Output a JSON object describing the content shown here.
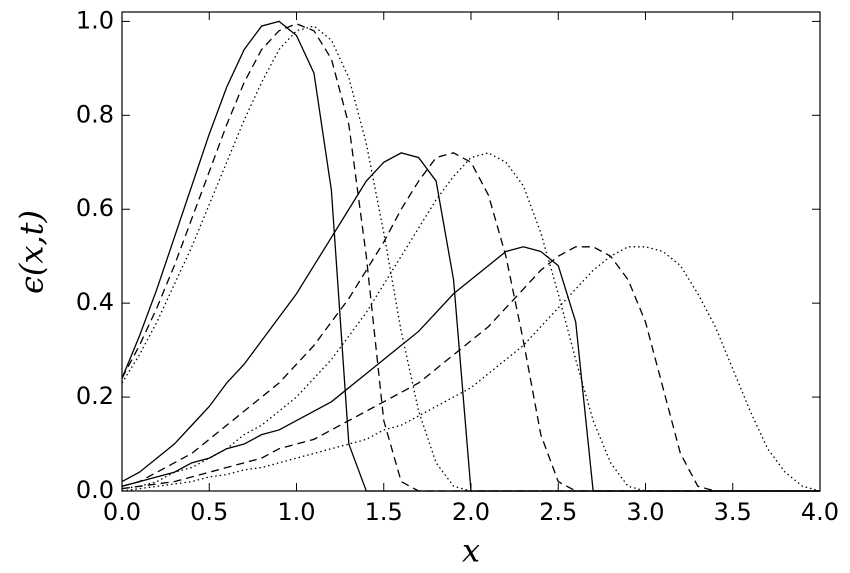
{
  "chart_data": {
    "type": "line",
    "x_label": "x",
    "y_label": "ϵ(x,t)",
    "xlim": [
      0,
      4
    ],
    "ylim": [
      0,
      1.02
    ],
    "xticks": [
      {
        "value": 0,
        "label": "0.0"
      },
      {
        "value": 0.5,
        "label": "0.5"
      },
      {
        "value": 1,
        "label": "1.0"
      },
      {
        "value": 1.5,
        "label": "1.5"
      },
      {
        "value": 2,
        "label": "2.0"
      },
      {
        "value": 2.5,
        "label": "2.5"
      },
      {
        "value": 3,
        "label": "3.0"
      },
      {
        "value": 3.5,
        "label": "3.5"
      },
      {
        "value": 4,
        "label": "4.0"
      }
    ],
    "yticks": [
      {
        "value": 0,
        "label": "0.0"
      },
      {
        "value": 0.2,
        "label": "0.2"
      },
      {
        "value": 0.4,
        "label": "0.4"
      },
      {
        "value": 0.6,
        "label": "0.6"
      },
      {
        "value": 0.8,
        "label": "0.8"
      },
      {
        "value": 1,
        "label": "1.0"
      }
    ],
    "grid": false,
    "x": [
      0,
      0.1,
      0.2,
      0.3,
      0.4,
      0.5,
      0.6,
      0.7,
      0.8,
      0.9,
      1.0,
      1.1,
      1.2,
      1.3,
      1.4,
      1.5,
      1.6,
      1.7,
      1.8,
      1.9,
      2.0,
      2.1,
      2.2,
      2.3,
      2.4,
      2.5,
      2.6,
      2.7,
      2.8,
      2.9,
      3.0,
      3.1,
      3.2,
      3.3,
      3.4,
      3.5,
      3.6,
      3.7,
      3.8,
      3.9,
      4.0
    ],
    "series": [
      {
        "color": "#000000",
        "dash": "solid",
        "values": [
          0.24,
          0.33,
          0.43,
          0.54,
          0.65,
          0.76,
          0.86,
          0.94,
          0.99,
          1.0,
          0.97,
          0.89,
          0.64,
          0.1,
          0,
          0,
          0,
          0,
          0,
          0,
          0,
          0,
          0,
          0,
          0,
          0,
          0,
          0,
          0,
          0,
          0,
          0,
          0,
          0,
          0,
          0,
          0,
          0,
          0,
          0,
          0
        ]
      },
      {
        "color": "#000000",
        "dash": "dashed",
        "values": [
          0.24,
          0.31,
          0.39,
          0.48,
          0.58,
          0.68,
          0.78,
          0.87,
          0.94,
          0.98,
          0.995,
          0.98,
          0.92,
          0.78,
          0.5,
          0.15,
          0.02,
          0,
          0,
          0,
          0,
          0,
          0,
          0,
          0,
          0,
          0,
          0,
          0,
          0,
          0,
          0,
          0,
          0,
          0,
          0,
          0,
          0,
          0,
          0,
          0
        ]
      },
      {
        "color": "#000000",
        "dash": "dotted",
        "values": [
          0.23,
          0.29,
          0.36,
          0.44,
          0.52,
          0.61,
          0.7,
          0.79,
          0.87,
          0.94,
          0.98,
          0.99,
          0.96,
          0.88,
          0.74,
          0.55,
          0.34,
          0.17,
          0.06,
          0.01,
          0,
          0,
          0,
          0,
          0,
          0,
          0,
          0,
          0,
          0,
          0,
          0,
          0,
          0,
          0,
          0,
          0,
          0,
          0,
          0,
          0
        ]
      },
      {
        "color": "#000000",
        "dash": "solid",
        "values": [
          0.02,
          0.04,
          0.07,
          0.1,
          0.14,
          0.18,
          0.23,
          0.27,
          0.32,
          0.37,
          0.42,
          0.48,
          0.54,
          0.6,
          0.66,
          0.7,
          0.72,
          0.71,
          0.66,
          0.45,
          0,
          0,
          0,
          0,
          0,
          0,
          0,
          0,
          0,
          0,
          0,
          0,
          0,
          0,
          0,
          0,
          0,
          0,
          0,
          0,
          0
        ]
      },
      {
        "color": "#000000",
        "dash": "dashed",
        "values": [
          0.01,
          0.02,
          0.04,
          0.06,
          0.08,
          0.11,
          0.14,
          0.17,
          0.2,
          0.23,
          0.27,
          0.31,
          0.36,
          0.41,
          0.47,
          0.53,
          0.6,
          0.66,
          0.71,
          0.72,
          0.7,
          0.63,
          0.5,
          0.32,
          0.12,
          0.02,
          0,
          0,
          0,
          0,
          0,
          0,
          0,
          0,
          0,
          0,
          0,
          0,
          0,
          0,
          0
        ]
      },
      {
        "color": "#000000",
        "dash": "dotted",
        "values": [
          0.005,
          0.01,
          0.02,
          0.04,
          0.05,
          0.07,
          0.09,
          0.12,
          0.14,
          0.17,
          0.2,
          0.24,
          0.28,
          0.33,
          0.38,
          0.44,
          0.5,
          0.56,
          0.62,
          0.67,
          0.71,
          0.72,
          0.7,
          0.65,
          0.55,
          0.42,
          0.28,
          0.15,
          0.06,
          0.01,
          0,
          0,
          0,
          0,
          0,
          0,
          0,
          0,
          0,
          0,
          0
        ]
      },
      {
        "color": "#000000",
        "dash": "solid",
        "values": [
          0.01,
          0.02,
          0.03,
          0.04,
          0.06,
          0.07,
          0.09,
          0.1,
          0.12,
          0.13,
          0.15,
          0.17,
          0.19,
          0.22,
          0.25,
          0.28,
          0.31,
          0.34,
          0.38,
          0.42,
          0.45,
          0.48,
          0.51,
          0.52,
          0.51,
          0.48,
          0.36,
          0,
          0,
          0,
          0,
          0,
          0,
          0,
          0,
          0,
          0,
          0,
          0,
          0,
          0
        ]
      },
      {
        "color": "#000000",
        "dash": "dashed",
        "values": [
          0.005,
          0.01,
          0.015,
          0.02,
          0.03,
          0.04,
          0.05,
          0.06,
          0.07,
          0.09,
          0.1,
          0.11,
          0.13,
          0.15,
          0.17,
          0.19,
          0.21,
          0.23,
          0.26,
          0.29,
          0.32,
          0.35,
          0.39,
          0.43,
          0.47,
          0.5,
          0.52,
          0.52,
          0.5,
          0.45,
          0.36,
          0.22,
          0.08,
          0.01,
          0,
          0,
          0,
          0,
          0,
          0,
          0
        ]
      },
      {
        "color": "#000000",
        "dash": "dotted",
        "values": [
          0,
          0.005,
          0.01,
          0.015,
          0.02,
          0.03,
          0.035,
          0.045,
          0.05,
          0.06,
          0.07,
          0.08,
          0.09,
          0.1,
          0.11,
          0.13,
          0.14,
          0.16,
          0.18,
          0.2,
          0.22,
          0.25,
          0.28,
          0.31,
          0.35,
          0.39,
          0.43,
          0.47,
          0.5,
          0.52,
          0.52,
          0.51,
          0.48,
          0.42,
          0.35,
          0.26,
          0.17,
          0.09,
          0.04,
          0.01,
          0
        ]
      }
    ]
  }
}
